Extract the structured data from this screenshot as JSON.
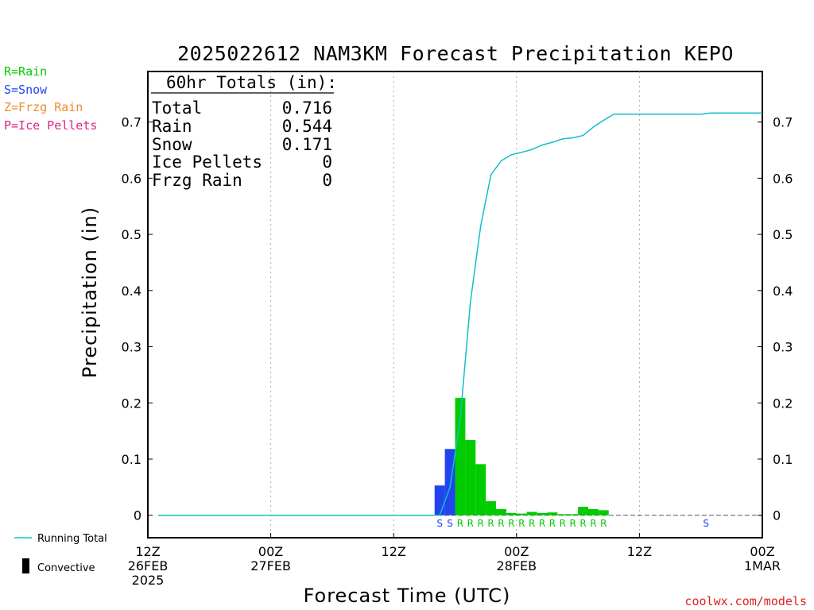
{
  "chart_data": {
    "type": "bar",
    "title": "2025022612 NAM3KM Forecast Precipitation KEPO",
    "xlabel": "Forecast Time (UTC)",
    "ylabel": "Precipitation (in)",
    "ylim": [
      -0.04,
      0.79
    ],
    "yticks": [
      0,
      0.1,
      0.2,
      0.3,
      0.4,
      0.5,
      0.6,
      0.7
    ],
    "ytick_labels": [
      "0",
      "0.1",
      "0.2",
      "0.3",
      "0.4",
      "0.5",
      "0.6",
      "0.7"
    ],
    "xlim_hours": [
      0,
      60
    ],
    "xticks": [
      {
        "hour": 0,
        "lines": [
          "12Z",
          "26FEB",
          "2025"
        ]
      },
      {
        "hour": 12,
        "lines": [
          "00Z",
          "27FEB"
        ]
      },
      {
        "hour": 24,
        "lines": [
          "12Z"
        ]
      },
      {
        "hour": 36,
        "lines": [
          "00Z",
          "28FEB"
        ]
      },
      {
        "hour": 48,
        "lines": [
          "12Z"
        ]
      },
      {
        "hour": 60,
        "lines": [
          "00Z",
          "1MAR"
        ]
      }
    ],
    "gridlines": "vertical-dotted",
    "totals_box": {
      "heading": "60hr Totals (in):",
      "rows": [
        {
          "label": "Total",
          "value": "0.716"
        },
        {
          "label": "Rain",
          "value": "0.544"
        },
        {
          "label": "Snow",
          "value": "0.171"
        },
        {
          "label": "Ice Pellets",
          "value": "0"
        },
        {
          "label": "Frzg Rain",
          "value": "0"
        }
      ]
    },
    "type_legend": [
      {
        "text": "R=Rain",
        "color": "#00cc00"
      },
      {
        "text": "S=Snow",
        "color": "#2244ee"
      },
      {
        "text": "Z=Frzg Rain",
        "color": "#f08a30"
      },
      {
        "text": "P=Ice Pellets",
        "color": "#e0208a"
      }
    ],
    "line_legend": [
      {
        "text": "Running Total",
        "kind": "line",
        "color": "#10c0c8"
      },
      {
        "text": "Convective",
        "kind": "bar",
        "color": "#000000"
      }
    ],
    "colors": {
      "snow": "#2244ee",
      "rain": "#00cc00",
      "running_total": "#10c0c8"
    },
    "bars": [
      {
        "hour": 29,
        "value": 0.053,
        "type": "S"
      },
      {
        "hour": 30,
        "value": 0.118,
        "type": "S"
      },
      {
        "hour": 31,
        "value": 0.209,
        "type": "R"
      },
      {
        "hour": 32,
        "value": 0.134,
        "type": "R"
      },
      {
        "hour": 33,
        "value": 0.091,
        "type": "R"
      },
      {
        "hour": 34,
        "value": 0.025,
        "type": "R"
      },
      {
        "hour": 35,
        "value": 0.011,
        "type": "R"
      },
      {
        "hour": 36,
        "value": 0.004,
        "type": "R"
      },
      {
        "hour": 37,
        "value": 0.003,
        "type": "R"
      },
      {
        "hour": 38,
        "value": 0.006,
        "type": "R"
      },
      {
        "hour": 39,
        "value": 0.004,
        "type": "R"
      },
      {
        "hour": 40,
        "value": 0.005,
        "type": "R"
      },
      {
        "hour": 41,
        "value": 0.002,
        "type": "R"
      },
      {
        "hour": 42,
        "value": 0.002,
        "type": "R"
      },
      {
        "hour": 43,
        "value": 0.015,
        "type": "R"
      },
      {
        "hour": 44,
        "value": 0.011,
        "type": "R"
      },
      {
        "hour": 45,
        "value": 0.009,
        "type": "R"
      }
    ],
    "type_markers": [
      {
        "hour": 29,
        "text": "S"
      },
      {
        "hour": 30,
        "text": "S"
      },
      {
        "hour": 31,
        "text": "R"
      },
      {
        "hour": 32,
        "text": "R"
      },
      {
        "hour": 33,
        "text": "R"
      },
      {
        "hour": 34,
        "text": "R"
      },
      {
        "hour": 35,
        "text": "R"
      },
      {
        "hour": 36,
        "text": "R"
      },
      {
        "hour": 37,
        "text": "R"
      },
      {
        "hour": 38,
        "text": "R"
      },
      {
        "hour": 39,
        "text": "R"
      },
      {
        "hour": 40,
        "text": "R"
      },
      {
        "hour": 41,
        "text": "R"
      },
      {
        "hour": 42,
        "text": "R"
      },
      {
        "hour": 43,
        "text": "R"
      },
      {
        "hour": 44,
        "text": "R"
      },
      {
        "hour": 45,
        "text": "R"
      },
      {
        "hour": 55,
        "text": "S"
      }
    ],
    "running_total": [
      {
        "hour": 1,
        "value": 0
      },
      {
        "hour": 28.5,
        "value": 0
      },
      {
        "hour": 29.5,
        "value": 0.05
      },
      {
        "hour": 30.5,
        "value": 0.171
      },
      {
        "hour": 31.5,
        "value": 0.38
      },
      {
        "hour": 32.5,
        "value": 0.515
      },
      {
        "hour": 33.5,
        "value": 0.606
      },
      {
        "hour": 34.5,
        "value": 0.631
      },
      {
        "hour": 35.5,
        "value": 0.642
      },
      {
        "hour": 36.5,
        "value": 0.646
      },
      {
        "hour": 37.5,
        "value": 0.651
      },
      {
        "hour": 38.5,
        "value": 0.659
      },
      {
        "hour": 39.5,
        "value": 0.664
      },
      {
        "hour": 40.5,
        "value": 0.67
      },
      {
        "hour": 41.5,
        "value": 0.672
      },
      {
        "hour": 42.5,
        "value": 0.676
      },
      {
        "hour": 43.5,
        "value": 0.691
      },
      {
        "hour": 44.5,
        "value": 0.703
      },
      {
        "hour": 45.5,
        "value": 0.714
      },
      {
        "hour": 54,
        "value": 0.714
      },
      {
        "hour": 55,
        "value": 0.716
      },
      {
        "hour": 60,
        "value": 0.716
      }
    ]
  },
  "footer": {
    "credit": "coolwx.com/models"
  }
}
